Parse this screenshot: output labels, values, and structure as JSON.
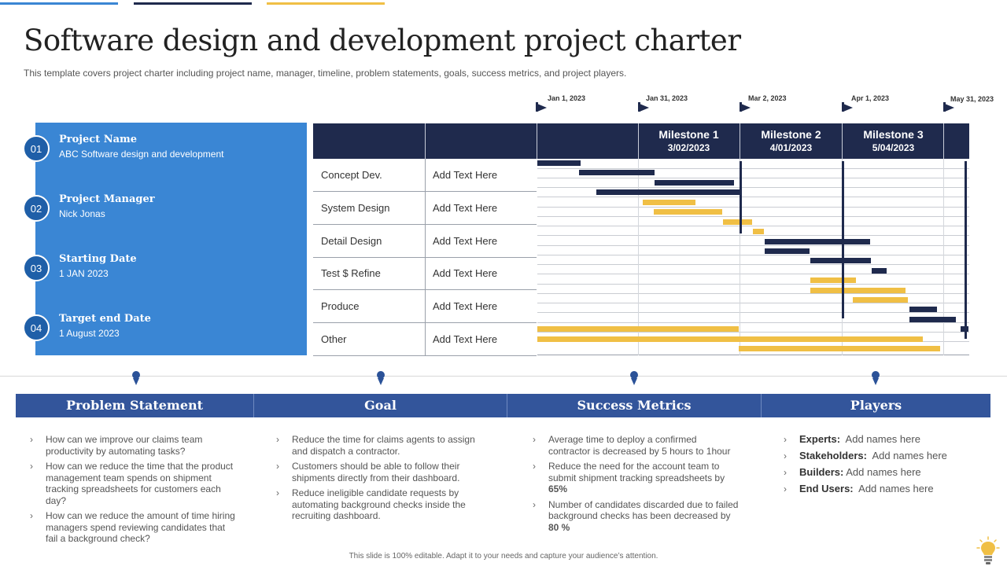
{
  "header": {
    "title": "Software design and development project charter",
    "subtitle": "This template covers project charter including project name, manager, timeline, problem statements, goals, success metrics, and project players."
  },
  "info": [
    {
      "num": "01",
      "label": "Project Name",
      "value": "ABC Software design and development"
    },
    {
      "num": "02",
      "label": "Project Manager",
      "value": "Nick Jonas"
    },
    {
      "num": "03",
      "label": "Starting Date",
      "value": "1 JAN 2023"
    },
    {
      "num": "04",
      "label": "Target end Date",
      "value": "1 August 2023"
    }
  ],
  "timeline": {
    "dates": [
      "Jan 1, 2023",
      "Jan 31, 2023",
      "Mar 2, 2023",
      "Apr 1, 2023",
      "May 31, 2023"
    ],
    "milestones": [
      {
        "name": "Milestone 1",
        "date": "3/02/2023"
      },
      {
        "name": "Milestone 2",
        "date": "4/01/2023"
      },
      {
        "name": "Milestone 3",
        "date": "5/04/2023"
      }
    ],
    "rows": [
      {
        "phase": "Concept Dev.",
        "text": "Add Text Here"
      },
      {
        "phase": "System Design",
        "text": "Add Text Here"
      },
      {
        "phase": "Detail Design",
        "text": "Add Text Here"
      },
      {
        "phase": "Test $ Refine",
        "text": "Add Text Here"
      },
      {
        "phase": "Produce",
        "text": "Add Text Here"
      },
      {
        "phase": "Other",
        "text": "Add Text Here"
      }
    ],
    "colors": {
      "navy": "#1f2a4d",
      "gold": "#f0bf45"
    }
  },
  "sections": {
    "problem": {
      "title": "Problem Statement",
      "items": [
        "How can we improve our claims team productivity by automating tasks?",
        "How can we reduce the time that the product management team spends on shipment tracking spreadsheets for customers each day?",
        "How can we reduce the amount of time hiring managers spend reviewing candidates that fail a background check?"
      ]
    },
    "goal": {
      "title": "Goal",
      "items": [
        "Reduce the time for claims agents to assign and dispatch a contractor.",
        "Customers should be able to follow their shipments directly from their dashboard.",
        "Reduce ineligible candidate requests by automating background checks inside the recruiting dashboard."
      ]
    },
    "metrics": {
      "title": "Success Metrics",
      "m1": "Average time to deploy a confirmed contractor is decreased by 5 hours to 1hour",
      "m2_text": "Reduce the need for the account team to submit shipment tracking spreadsheets by ",
      "m2_value": "65%",
      "m3_text": "Number of candidates discarded due to failed background checks has been decreased by ",
      "m3_value": "80 %"
    },
    "players": {
      "title": "Players",
      "items": [
        {
          "role": "Experts:",
          "names": "Add names here"
        },
        {
          "role": "Stakeholders:",
          "names": "Add names here"
        },
        {
          "role": "Builders:",
          "names": "Add names here"
        },
        {
          "role": "End Users:",
          "names": "Add names here"
        }
      ]
    }
  },
  "footer": "This slide is 100% editable. Adapt it to your needs and capture your audience’s attention."
}
